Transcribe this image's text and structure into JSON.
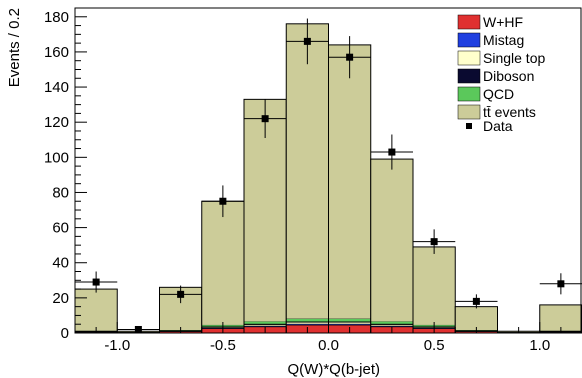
{
  "chart_data": {
    "type": "bar",
    "stacked": true,
    "title": "",
    "xlabel": "Q(W)*Q(b-jet)",
    "ylabel": "Events / 0.2",
    "xlim": [
      -1.2,
      1.2
    ],
    "ylim": [
      0,
      185
    ],
    "bin_width": 0.2,
    "x_ticks": [
      -1.0,
      -0.5,
      0.0,
      0.5,
      1.0
    ],
    "x_tick_labels": [
      "-1.0",
      "-0.5",
      "0.0",
      "0.5",
      "1.0"
    ],
    "y_ticks": [
      0,
      20,
      40,
      60,
      80,
      100,
      120,
      140,
      160,
      180
    ],
    "y_tick_labels": [
      "0",
      "20",
      "40",
      "60",
      "80",
      "100",
      "120",
      "140",
      "160",
      "180"
    ],
    "bin_centers": [
      -1.1,
      -0.9,
      -0.7,
      -0.5,
      -0.3,
      -0.1,
      0.1,
      0.3,
      0.5,
      0.7,
      0.9,
      1.1
    ],
    "series": [
      {
        "name": "W+HF",
        "color": "#e03030",
        "values": [
          0.5,
          0.2,
          0.8,
          2.5,
          3.5,
          4.5,
          4.5,
          3.5,
          2.5,
          0.8,
          0.2,
          0.5
        ]
      },
      {
        "name": "Mistag",
        "color": "#1f3fe0",
        "values": [
          0.2,
          0.1,
          0.2,
          0.4,
          0.5,
          0.6,
          0.6,
          0.5,
          0.4,
          0.2,
          0.1,
          0.2
        ]
      },
      {
        "name": "Single top",
        "color": "#ffffcc",
        "values": [
          0.2,
          0.1,
          0.2,
          0.5,
          0.8,
          1.0,
          1.0,
          0.8,
          0.5,
          0.2,
          0.1,
          0.2
        ]
      },
      {
        "name": "Diboson",
        "color": "#0a0a30",
        "values": [
          0.1,
          0.05,
          0.1,
          0.2,
          0.3,
          0.3,
          0.3,
          0.3,
          0.2,
          0.1,
          0.05,
          0.1
        ]
      },
      {
        "name": "QCD",
        "color": "#5bc85b",
        "values": [
          0.3,
          0.1,
          0.4,
          1.0,
          1.5,
          1.8,
          1.8,
          1.5,
          1.0,
          0.4,
          0.1,
          0.3
        ]
      },
      {
        "name": "tt̄ events",
        "color": "#cccc99",
        "values": [
          23.7,
          0.45,
          24.3,
          70.4,
          126.4,
          167.8,
          155.8,
          92.4,
          44.4,
          13.3,
          0.45,
          14.7
        ]
      }
    ],
    "data_points": {
      "name": "Data",
      "color": "#000000",
      "values": [
        29,
        2,
        22,
        75,
        122,
        166,
        157,
        103,
        52,
        18,
        0,
        28
      ],
      "errors": [
        6,
        1.5,
        5,
        9,
        11,
        13,
        12,
        10,
        7,
        4,
        0,
        6
      ]
    },
    "legend": {
      "placement": "top-right",
      "entries": [
        "W+HF",
        "Mistag",
        "Single top",
        "Diboson",
        "QCD",
        "tt̄ events",
        "Data"
      ]
    },
    "grid": false
  }
}
